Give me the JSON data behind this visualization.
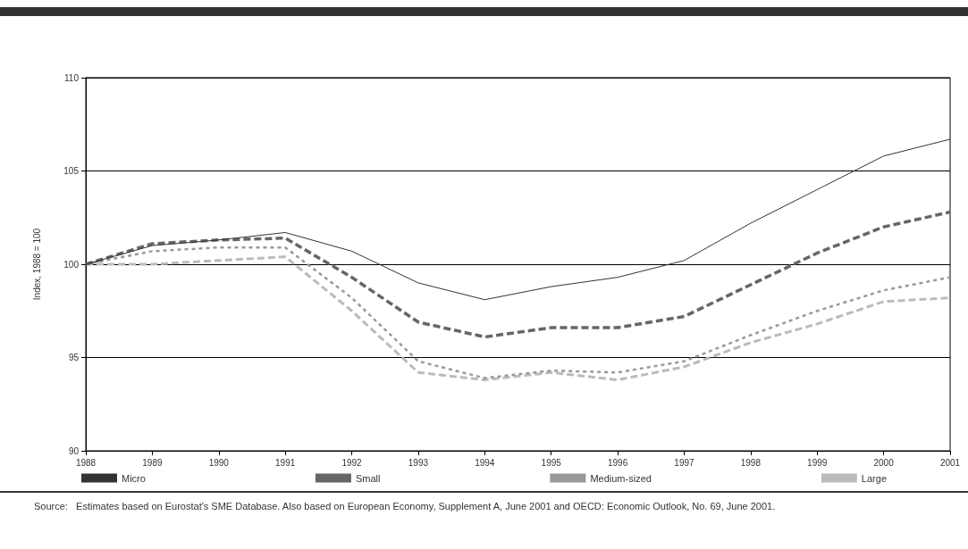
{
  "chart_data": {
    "type": "line",
    "ylabel": "Index, 1988 = 100",
    "x": [
      1988,
      1989,
      1990,
      1991,
      1992,
      1993,
      1994,
      1995,
      1996,
      1997,
      1998,
      1999,
      2000,
      2001
    ],
    "xlim": [
      1988,
      2001
    ],
    "xticks": [
      1988,
      1989,
      1990,
      1991,
      1992,
      1993,
      1994,
      1995,
      1996,
      1997,
      1998,
      1999,
      2000,
      2001
    ],
    "ylim": [
      90,
      110
    ],
    "yticks": [
      90,
      95,
      100,
      105,
      110
    ],
    "grid": "y",
    "legend": "bottom",
    "marker": "none",
    "series": [
      {
        "name": "Micro",
        "color": "#333333",
        "line_style": "solid",
        "values": [
          100,
          101.0,
          101.3,
          101.7,
          100.7,
          99.0,
          98.1,
          98.8,
          99.3,
          100.2,
          102.2,
          104.0,
          105.8,
          106.7
        ]
      },
      {
        "name": "Small",
        "color": "#666666",
        "line_style": "dashed",
        "values": [
          100,
          101.1,
          101.3,
          101.4,
          99.3,
          96.9,
          96.1,
          96.6,
          96.6,
          97.2,
          98.9,
          100.6,
          102.0,
          102.8
        ]
      },
      {
        "name": "Medium-sized",
        "color": "#999999",
        "line_style": "dotted",
        "values": [
          100,
          100.7,
          100.9,
          100.9,
          98.2,
          94.8,
          93.9,
          94.3,
          94.2,
          94.8,
          96.2,
          97.5,
          98.6,
          99.3
        ]
      },
      {
        "name": "Large",
        "color": "#bbbbbb",
        "line_style": "dashed",
        "values": [
          100,
          100.0,
          100.2,
          100.4,
          97.5,
          94.2,
          93.8,
          94.2,
          93.8,
          94.5,
          95.8,
          96.8,
          98.0,
          98.2
        ]
      }
    ],
    "annotations": [
      "Source:   Estimates based on Eurostat's SME Database. Also based on European Economy, Supplement A, June 2001 and OECD: Economic Outlook, No. 69, June 2001."
    ]
  }
}
